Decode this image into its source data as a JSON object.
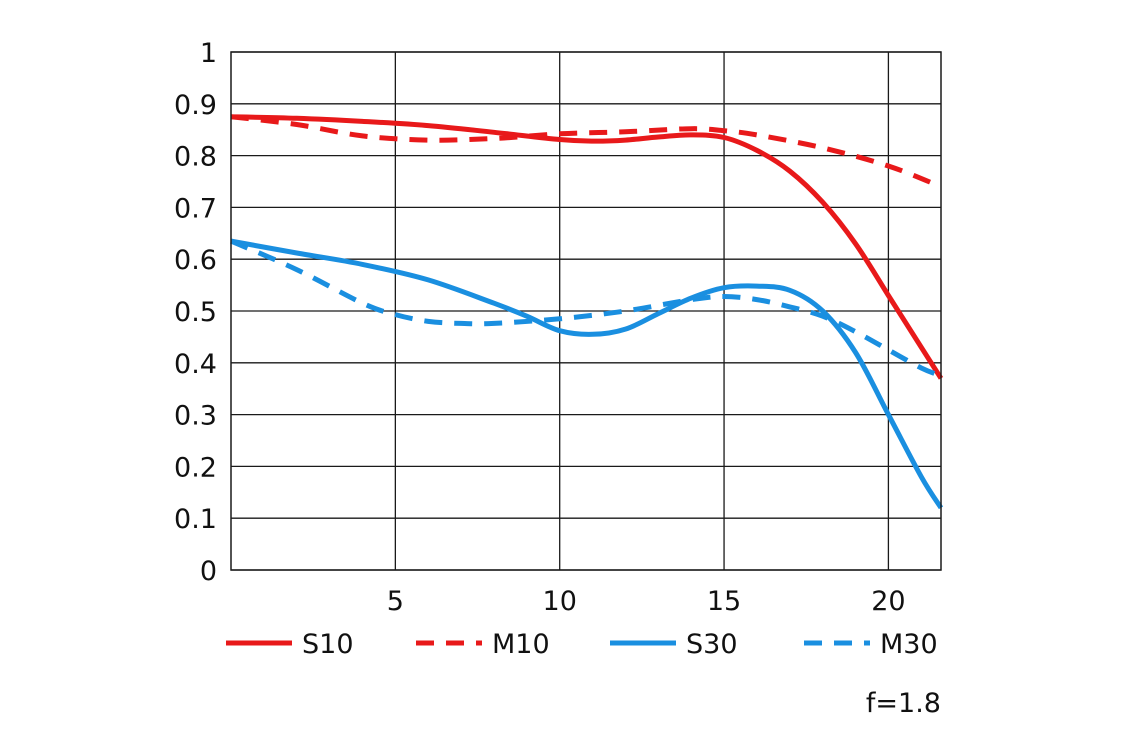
{
  "chart_data": {
    "type": "line",
    "title": "",
    "xlabel": "",
    "ylabel": "",
    "xlim": [
      0,
      21.6
    ],
    "ylim": [
      0,
      1
    ],
    "xticks": [
      5,
      10,
      15,
      20
    ],
    "yticks": [
      0,
      0.1,
      0.2,
      0.3,
      0.4,
      0.5,
      0.6,
      0.7,
      0.8,
      0.9,
      1
    ],
    "ytick_labels": [
      "0",
      "0.1",
      "0.2",
      "0.3",
      "0.4",
      "0.5",
      "0.6",
      "0.7",
      "0.8",
      "0.9",
      "1"
    ],
    "xtick_labels": [
      "5",
      "10",
      "15",
      "20"
    ],
    "grid": true,
    "legend_position": "bottom",
    "series": [
      {
        "name": "S10",
        "color": "#e8191a",
        "style": "solid",
        "x": [
          0,
          2,
          4,
          6,
          8,
          10,
          11,
          12,
          13,
          14,
          15,
          16,
          17,
          18,
          19,
          20,
          21,
          21.6
        ],
        "y": [
          0.875,
          0.872,
          0.866,
          0.858,
          0.845,
          0.831,
          0.828,
          0.83,
          0.836,
          0.84,
          0.835,
          0.81,
          0.77,
          0.71,
          0.63,
          0.53,
          0.43,
          0.37
        ]
      },
      {
        "name": "M10",
        "color": "#e8191a",
        "style": "dashed",
        "x": [
          0,
          2,
          4,
          6,
          8,
          10,
          12,
          14,
          15,
          16,
          18,
          20,
          21.6
        ],
        "y": [
          0.875,
          0.86,
          0.838,
          0.83,
          0.833,
          0.842,
          0.846,
          0.852,
          0.848,
          0.84,
          0.815,
          0.78,
          0.74
        ]
      },
      {
        "name": "S30",
        "color": "#1a8fe0",
        "style": "solid",
        "x": [
          0,
          2,
          4,
          6,
          8,
          9,
          10,
          11,
          12,
          13,
          14,
          15,
          16,
          17,
          18,
          19,
          20,
          21,
          21.6
        ],
        "y": [
          0.635,
          0.612,
          0.59,
          0.56,
          0.515,
          0.49,
          0.462,
          0.455,
          0.465,
          0.495,
          0.525,
          0.545,
          0.548,
          0.54,
          0.5,
          0.42,
          0.3,
          0.18,
          0.12
        ]
      },
      {
        "name": "M30",
        "color": "#1a8fe0",
        "style": "dashed",
        "x": [
          0,
          2,
          4,
          5,
          6,
          7,
          8,
          10,
          12,
          14,
          15,
          16,
          17,
          18,
          19,
          20,
          21,
          21.6
        ],
        "y": [
          0.635,
          0.58,
          0.515,
          0.493,
          0.48,
          0.476,
          0.476,
          0.485,
          0.5,
          0.522,
          0.528,
          0.522,
          0.508,
          0.49,
          0.46,
          0.425,
          0.39,
          0.375
        ]
      }
    ],
    "annotations": [
      "f=1.8"
    ]
  }
}
